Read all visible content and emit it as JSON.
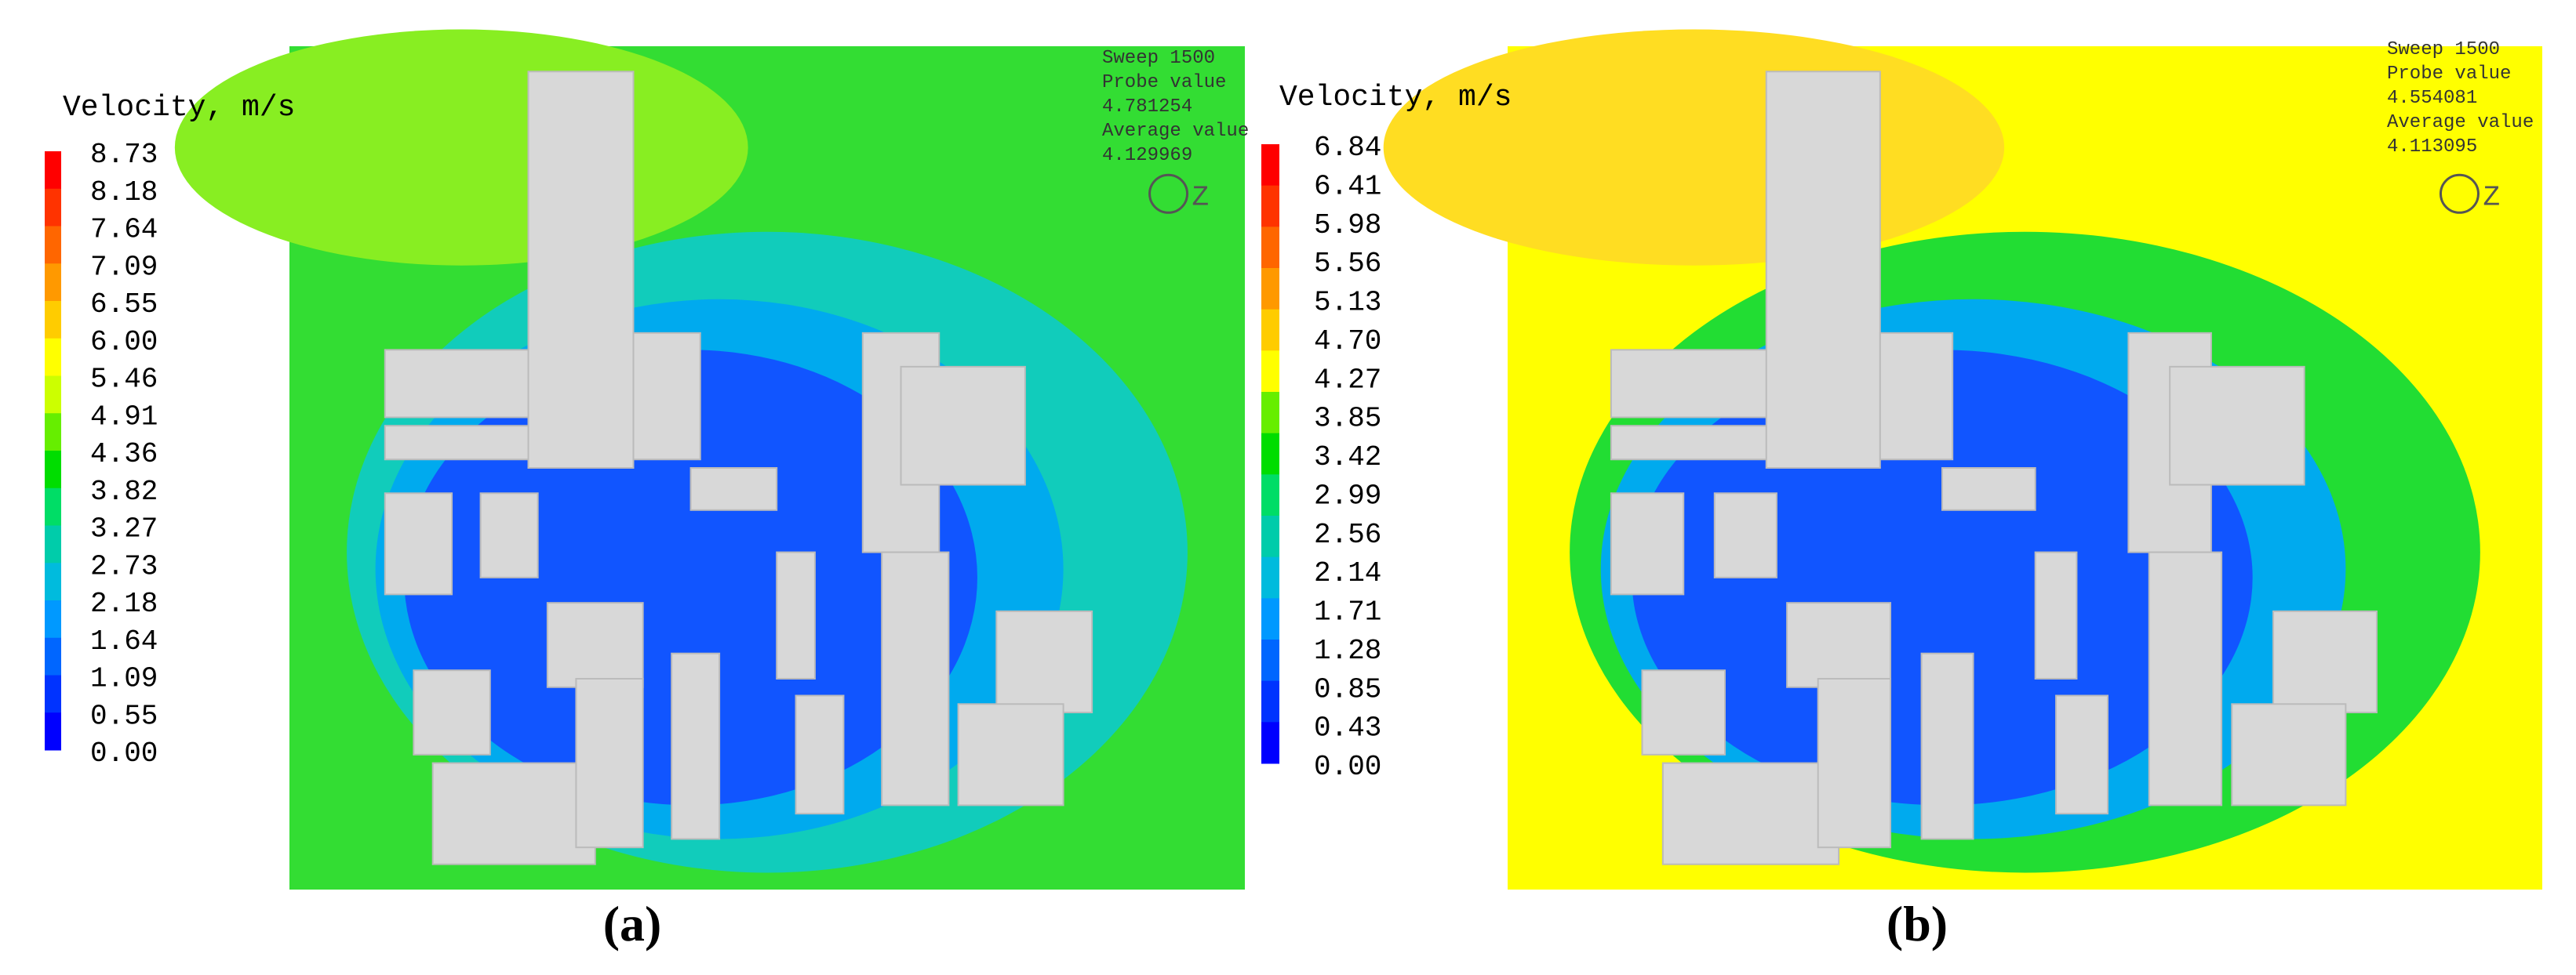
{
  "panels": [
    {
      "legend": {
        "title": "Velocity, m/s",
        "levels": [
          "8.73",
          "8.18",
          "7.64",
          "7.09",
          "6.55",
          "6.00",
          "5.46",
          "4.91",
          "4.36",
          "3.82",
          "3.27",
          "2.73",
          "2.18",
          "1.64",
          "1.09",
          "0.55",
          "0.00"
        ]
      },
      "info": [
        "Sweep 1500",
        "Probe value",
        "4.781254",
        "Average value",
        "4.129969"
      ],
      "label": "(a)"
    },
    {
      "legend": {
        "title": "Velocity, m/s",
        "levels": [
          "6.84",
          "6.41",
          "5.98",
          "5.56",
          "5.13",
          "4.70",
          "4.27",
          "3.85",
          "3.42",
          "2.99",
          "2.56",
          "2.14",
          "1.71",
          "1.28",
          "0.85",
          "0.43",
          "0.00"
        ]
      },
      "info": [
        "Sweep 1500",
        "Probe value",
        "4.554081",
        "Average value",
        "4.113095"
      ],
      "label": "(b)"
    }
  ]
}
